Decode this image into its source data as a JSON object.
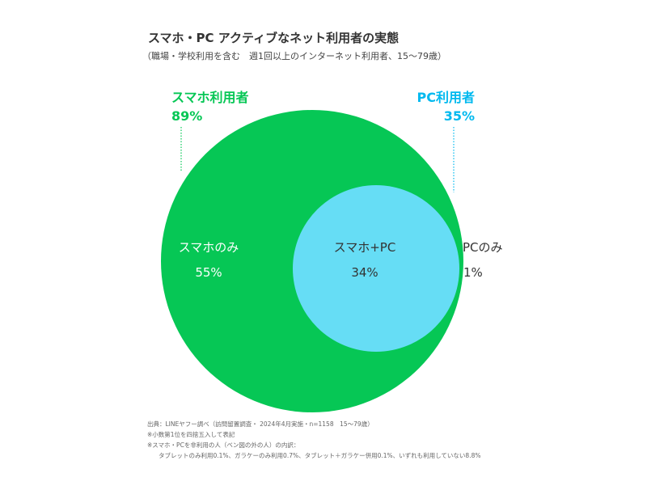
{
  "title": "スマホ・PC アクティブなネット利用者の実態",
  "subtitle": "（職場・学校利用を含む　週1回以上のインターネット利用者、15～79歳）",
  "colors": {
    "smartphone": "#06C755",
    "overlap": "#66DDF5",
    "pc": "#00B9EF",
    "label_smartphone": "#06C755",
    "label_pc": "#00B9EF"
  },
  "chart_data": {
    "type": "venn",
    "sets": [
      {
        "name": "スマホ利用者",
        "value_label": "89%",
        "value": 89
      },
      {
        "name": "PC利用者",
        "value_label": "35%",
        "value": 35
      }
    ],
    "regions": [
      {
        "label": "スマホのみ",
        "value_label": "55%",
        "value": 55
      },
      {
        "label": "スマホ+PC",
        "value_label": "34%",
        "value": 34
      },
      {
        "label": "PCのみ",
        "value_label": "1%",
        "value": 1
      }
    ]
  },
  "footnotes": [
    "出典：LINEヤフー調べ（訪問留置調査・ 2024年4月実施・n=1158　15～79歳）",
    "※小数第1位を四捨五入して表記",
    "※スマホ・PCを非利用の人（ベン図の外の人）の内訳：",
    "タブレットのみ利用0.1%、ガラケーのみ利用0.7%、タブレット＋ガラケー併用0.1%、いずれも利用していない8.8%"
  ]
}
